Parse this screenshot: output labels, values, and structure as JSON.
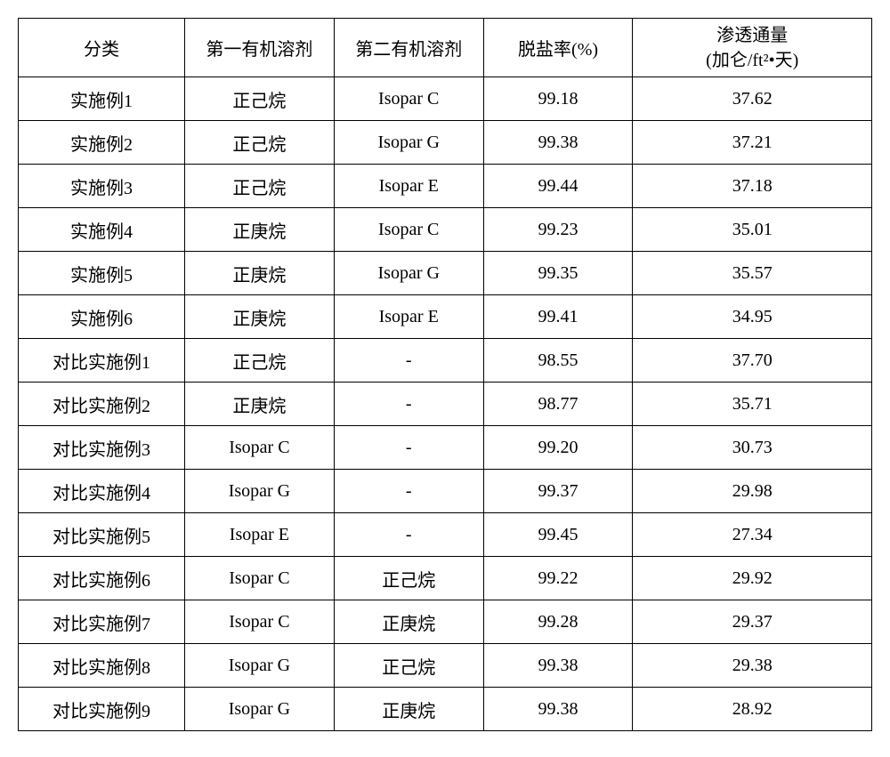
{
  "table": {
    "columns": [
      {
        "key": "category",
        "label": "分类",
        "class": "col-category"
      },
      {
        "key": "solvent1",
        "label": "第一有机溶剂",
        "class": "col-solvent1"
      },
      {
        "key": "solvent2",
        "label": "第二有机溶剂",
        "class": "col-solvent2"
      },
      {
        "key": "rate",
        "label": "脱盐率(%)",
        "class": "col-rate"
      },
      {
        "key": "flux",
        "label_line1": "渗透通量",
        "label_line2": "(加仑/ft²•天)",
        "class": "col-flux",
        "multiline": true
      }
    ],
    "rows": [
      {
        "category": "实施例1",
        "solvent1": "正己烷",
        "solvent2": "Isopar C",
        "rate": "99.18",
        "flux": "37.62"
      },
      {
        "category": "实施例2",
        "solvent1": "正己烷",
        "solvent2": "Isopar G",
        "rate": "99.38",
        "flux": "37.21"
      },
      {
        "category": "实施例3",
        "solvent1": "正己烷",
        "solvent2": "Isopar E",
        "rate": "99.44",
        "flux": "37.18"
      },
      {
        "category": "实施例4",
        "solvent1": "正庚烷",
        "solvent2": "Isopar C",
        "rate": "99.23",
        "flux": "35.01"
      },
      {
        "category": "实施例5",
        "solvent1": "正庚烷",
        "solvent2": "Isopar G",
        "rate": "99.35",
        "flux": "35.57"
      },
      {
        "category": "实施例6",
        "solvent1": "正庚烷",
        "solvent2": "Isopar E",
        "rate": "99.41",
        "flux": "34.95"
      },
      {
        "category": "对比实施例1",
        "solvent1": "正己烷",
        "solvent2": "-",
        "rate": "98.55",
        "flux": "37.70"
      },
      {
        "category": "对比实施例2",
        "solvent1": "正庚烷",
        "solvent2": "-",
        "rate": "98.77",
        "flux": "35.71"
      },
      {
        "category": "对比实施例3",
        "solvent1": "Isopar C",
        "solvent2": "-",
        "rate": "99.20",
        "flux": "30.73"
      },
      {
        "category": "对比实施例4",
        "solvent1": "Isopar G",
        "solvent2": "-",
        "rate": "99.37",
        "flux": "29.98"
      },
      {
        "category": "对比实施例5",
        "solvent1": "Isopar E",
        "solvent2": "-",
        "rate": "99.45",
        "flux": "27.34"
      },
      {
        "category": "对比实施例6",
        "solvent1": "Isopar C",
        "solvent2": "正己烷",
        "rate": "99.22",
        "flux": "29.92"
      },
      {
        "category": "对比实施例7",
        "solvent1": "Isopar C",
        "solvent2": "正庚烷",
        "rate": "99.28",
        "flux": "29.37"
      },
      {
        "category": "对比实施例8",
        "solvent1": "Isopar G",
        "solvent2": "正己烷",
        "rate": "99.38",
        "flux": "29.38"
      },
      {
        "category": "对比实施例9",
        "solvent1": "Isopar G",
        "solvent2": "正庚烷",
        "rate": "99.38",
        "flux": "28.92"
      }
    ],
    "styling": {
      "border_color": "#000000",
      "border_width": 1.5,
      "background_color": "#ffffff",
      "text_color": "#000000",
      "header_fontsize": 20,
      "cell_fontsize": 20,
      "header_row_height": 66,
      "data_row_height": 49,
      "font_family": "SimSun",
      "text_align": "center"
    }
  }
}
